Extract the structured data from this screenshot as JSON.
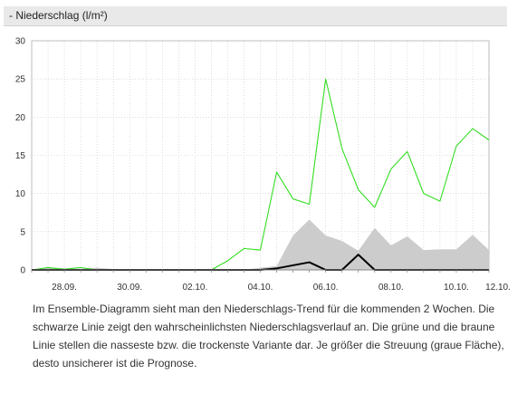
{
  "header": {
    "title": "- Niederschlag (l/m²)"
  },
  "description": "Im Ensemble-Diagramm sieht man den Niederschlags-Trend für die kommenden 2 Wochen. Die schwarze Linie zeigt den wahrscheinlichsten Niederschlagsverlauf an. Die grüne und die braune Linie stellen die nasseste bzw. die trockenste Variante dar. Je größer die Streuung (graue Fläche), desto unsicherer ist die Prognose.",
  "colors": {
    "wettest": "#33dd22",
    "main": "#000000",
    "driest": "#8b5a2b",
    "spread": "#cccccc",
    "grid": "#c8c8c8"
  },
  "chart_data": {
    "type": "line",
    "ylim": [
      0,
      30
    ],
    "yticks": [
      "0",
      "5",
      "10",
      "15",
      "20",
      "25",
      "30"
    ],
    "xlim": [
      0,
      28
    ],
    "xticks": [
      {
        "x": 2,
        "label": "28.09."
      },
      {
        "x": 6,
        "label": "30.09."
      },
      {
        "x": 10,
        "label": "02.10."
      },
      {
        "x": 14,
        "label": "04.10."
      },
      {
        "x": 18,
        "label": "06.10."
      },
      {
        "x": 22,
        "label": "08.10."
      },
      {
        "x": 26,
        "label": "10.10."
      },
      {
        "x": 30,
        "label": "12.10."
      }
    ],
    "series": [
      {
        "key": "spread",
        "type": "area",
        "x": [
          0,
          1,
          2,
          3,
          4,
          5,
          6,
          7,
          8,
          9,
          10,
          11,
          12,
          13,
          14,
          15,
          16,
          17,
          18,
          19,
          20,
          21,
          22,
          23,
          24,
          25,
          26,
          27,
          28
        ],
        "low": [
          0,
          0,
          0,
          0,
          0,
          0,
          0,
          0,
          0,
          0,
          0,
          0,
          0,
          0,
          0,
          0,
          0,
          0,
          0,
          0,
          0,
          0,
          0,
          0,
          0,
          0,
          0,
          0,
          0
        ],
        "high": [
          0,
          0.3,
          0.2,
          0.1,
          0.3,
          0.1,
          0,
          0,
          0,
          0,
          0,
          0,
          0,
          0,
          0.3,
          0.5,
          4.5,
          6.6,
          4.5,
          3.8,
          2.5,
          5.5,
          3.2,
          4.4,
          2.6,
          2.7,
          2.7,
          4.6,
          2.6
        ]
      },
      {
        "key": "wettest",
        "type": "line",
        "x": [
          0,
          1,
          2,
          3,
          4,
          5,
          6,
          7,
          8,
          9,
          10,
          11,
          12,
          13,
          14,
          15,
          16,
          17,
          18,
          19,
          20,
          21,
          22,
          23,
          24,
          25,
          26,
          27,
          28
        ],
        "values": [
          0,
          0.3,
          0.1,
          0.3,
          0,
          0,
          0,
          0,
          0,
          0,
          0,
          0,
          1.2,
          2.8,
          2.6,
          12.8,
          9.3,
          8.6,
          25,
          15.9,
          10.5,
          8.2,
          13.2,
          15.5,
          10,
          9,
          16.2,
          18.5,
          17
        ]
      },
      {
        "key": "main",
        "type": "line",
        "x": [
          0,
          1,
          2,
          3,
          4,
          5,
          6,
          7,
          8,
          9,
          10,
          11,
          12,
          13,
          14,
          15,
          16,
          17,
          18,
          19,
          20,
          21,
          22,
          23,
          24,
          25,
          26,
          27,
          28
        ],
        "values": [
          0,
          0,
          0,
          0,
          0,
          0,
          0,
          0,
          0,
          0,
          0,
          0,
          0,
          0,
          0,
          0.2,
          0.6,
          1,
          0,
          0,
          2,
          0,
          0,
          0,
          0,
          0,
          0,
          0,
          0
        ]
      }
    ]
  }
}
